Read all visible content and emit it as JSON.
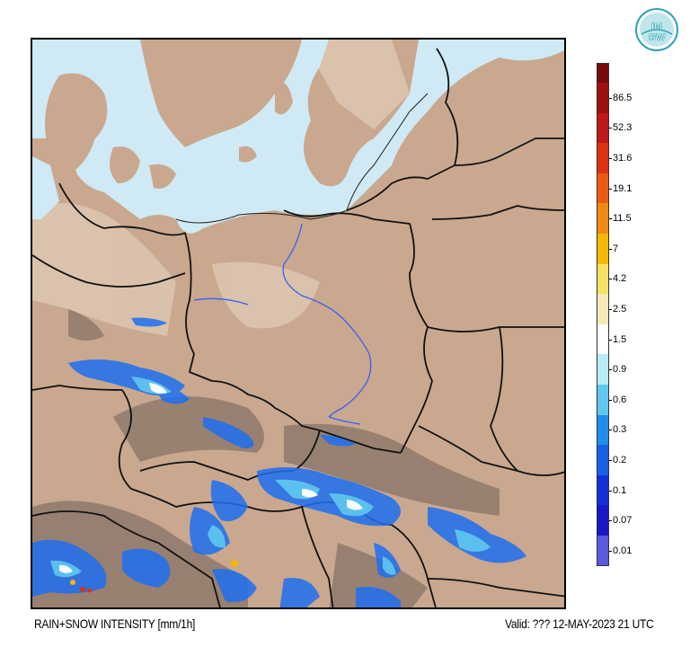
{
  "logo": {
    "line1": "IM",
    "line2": "GW"
  },
  "legend": {
    "levels": [
      {
        "label": "86.5",
        "color": "#a01010"
      },
      {
        "label": "52.3",
        "color": "#c01818"
      },
      {
        "label": "31.6",
        "color": "#e03010"
      },
      {
        "label": "19.1",
        "color": "#ee5a10"
      },
      {
        "label": "11.5",
        "color": "#f08a10"
      },
      {
        "label": "7",
        "color": "#f5b800"
      },
      {
        "label": "4.2",
        "color": "#f7e260"
      },
      {
        "label": "2.5",
        "color": "#f3eab8"
      },
      {
        "label": "1.5",
        "color": "#ffffff"
      },
      {
        "label": "0.9",
        "color": "#b8ecf4"
      },
      {
        "label": "0.6",
        "color": "#5fc8f0"
      },
      {
        "label": "0.3",
        "color": "#1e8fef"
      },
      {
        "label": "0.2",
        "color": "#1860e8"
      },
      {
        "label": "0.1",
        "color": "#1030d8"
      },
      {
        "label": "0.07",
        "color": "#1818c8"
      },
      {
        "label": "0.01",
        "color": "#5a5ae0"
      }
    ],
    "top_color": "#7a0a0a"
  },
  "captions": {
    "left": "RAIN+SNOW INTENSITY [mm/1h]",
    "right": "Valid: ??? 12-MAY-2023 21 UTC"
  },
  "colors": {
    "land": "#c9a88f",
    "land_dark": "#8f7a6c",
    "land_light": "#e6d6c8",
    "sea": "#cfeaf5",
    "border": "#111111",
    "river": "#3a5ff0",
    "precip_blue": "#1e6ff0",
    "precip_light": "#5fc8f0",
    "precip_dark": "#1030d8"
  }
}
